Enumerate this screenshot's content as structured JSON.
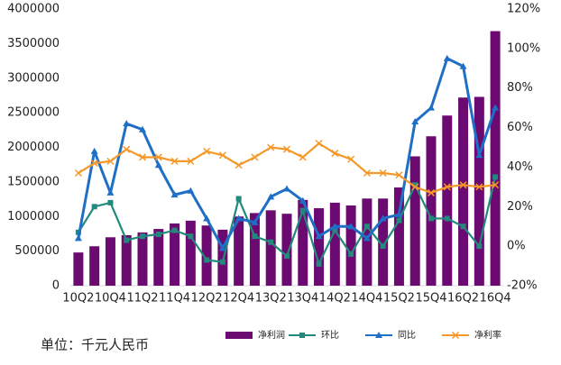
{
  "chart_data": {
    "type": "bar-line",
    "categories": [
      "10Q2",
      null,
      "10Q4",
      null,
      "11Q2",
      null,
      "11Q4",
      null,
      "12Q2",
      null,
      "12Q4",
      null,
      "13Q2",
      null,
      "13Q4",
      null,
      "14Q2",
      null,
      "14Q4",
      null,
      "15Q2",
      null,
      "15Q4",
      null,
      "16Q2",
      null,
      "16Q4"
    ],
    "series": [
      {
        "name": "净利润",
        "type": "bar",
        "color": "#6b0a70",
        "values": [
          480000,
          570000,
          700000,
          730000,
          770000,
          820000,
          900000,
          940000,
          870000,
          810000,
          1000000,
          1050000,
          1090000,
          1040000,
          1240000,
          1120000,
          1200000,
          1160000,
          1260000,
          1260000,
          1420000,
          1870000,
          2160000,
          2460000,
          2720000,
          2730000,
          3680000
        ]
      },
      {
        "name": "环比",
        "type": "line",
        "axis": "y2",
        "color": "#23897d",
        "marker": "square",
        "values": [
          7,
          20,
          22,
          3,
          5,
          6,
          8,
          5,
          -7,
          -8,
          24,
          5,
          2,
          -5,
          18,
          -9,
          8,
          -4,
          10,
          0,
          13,
          31,
          14,
          14,
          10,
          0,
          35
        ]
      },
      {
        "name": "同比",
        "type": "line",
        "axis": "y2",
        "color": "#1f6fc6",
        "marker": "triangle",
        "values": [
          4,
          48,
          27,
          62,
          59,
          41,
          26,
          28,
          14,
          -1,
          14,
          12,
          25,
          29,
          23,
          5,
          10,
          10,
          4,
          14,
          16,
          63,
          70,
          95,
          91,
          46,
          70
        ]
      },
      {
        "name": "净利率",
        "type": "line",
        "axis": "y2",
        "color": "#f5982a",
        "marker": "x",
        "values": [
          37,
          42,
          43,
          49,
          45,
          45,
          43,
          43,
          48,
          46,
          41,
          45,
          50,
          49,
          45,
          52,
          47,
          44,
          37,
          37,
          36,
          30,
          27,
          30,
          31,
          30,
          31
        ]
      }
    ],
    "ylim": [
      0,
      4000000
    ],
    "yticks": [
      0,
      500000,
      1000000,
      1500000,
      2000000,
      2500000,
      3000000,
      3500000,
      4000000
    ],
    "y2lim": [
      -20,
      120
    ],
    "y2ticks": [
      {
        "value": -20,
        "label": "-20%"
      },
      {
        "value": 0,
        "label": "0%"
      },
      {
        "value": 20,
        "label": "20%"
      },
      {
        "value": 40,
        "label": "40%"
      },
      {
        "value": 60,
        "label": "60%"
      },
      {
        "value": 80,
        "label": "80%"
      },
      {
        "value": 100,
        "label": "100%"
      },
      {
        "value": 120,
        "label": "120%"
      }
    ],
    "legend": "bottom",
    "unit_note": "单位：千元人民币"
  }
}
